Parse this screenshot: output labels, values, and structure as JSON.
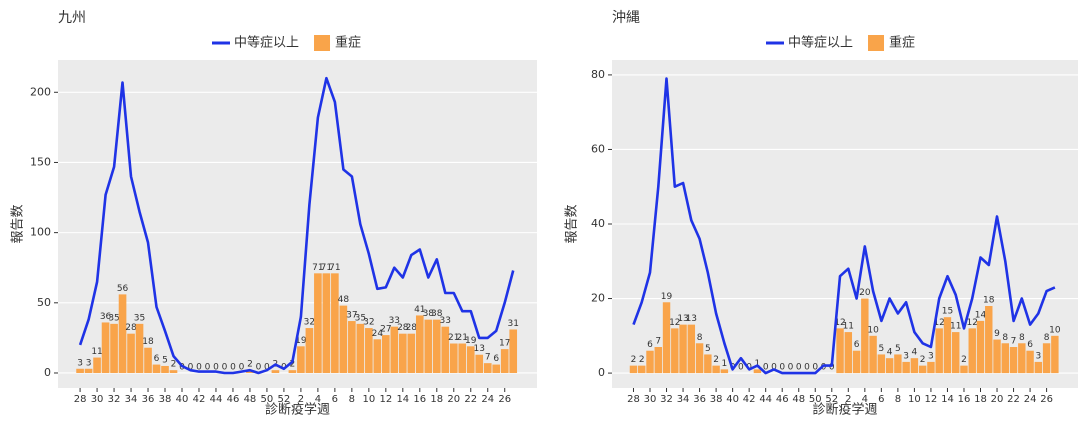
{
  "chart_data": [
    {
      "type": "combo",
      "title": "九州",
      "xlabel": "診断疫学週",
      "ylabel": "報告数",
      "categories": [
        28,
        null,
        30,
        null,
        32,
        null,
        34,
        null,
        36,
        null,
        38,
        null,
        40,
        null,
        42,
        null,
        44,
        null,
        46,
        null,
        48,
        null,
        50,
        null,
        52,
        null,
        2,
        null,
        4,
        null,
        6,
        null,
        8,
        null,
        10,
        null,
        12,
        null,
        14,
        null,
        16,
        null,
        18,
        null,
        20,
        null,
        22,
        null,
        24,
        null,
        26,
        null
      ],
      "ylim": [
        -10.7,
        223
      ],
      "yticks": [
        0,
        50,
        100,
        150,
        200
      ],
      "grid": true,
      "series": [
        {
          "name": "中等症以上",
          "type": "line",
          "color": "#1f33e6",
          "values": [
            20,
            38,
            65,
            127,
            147,
            207,
            140,
            115,
            93,
            47,
            30,
            12,
            5,
            2,
            1,
            1,
            1,
            0,
            0,
            1,
            2,
            0,
            2,
            6,
            3,
            8,
            40,
            120,
            182,
            210,
            193,
            145,
            140,
            106,
            85,
            60,
            61,
            75,
            68,
            84,
            88,
            68,
            81,
            57,
            57,
            44,
            44,
            25,
            25,
            30,
            50,
            73
          ]
        },
        {
          "name": "重症",
          "type": "bar",
          "color": "#f9a44a",
          "values": [
            3,
            3,
            11,
            36,
            35,
            56,
            28,
            35,
            18,
            6,
            5,
            2,
            0,
            0,
            0,
            0,
            0,
            0,
            0,
            0,
            2,
            0,
            0,
            2,
            0,
            2,
            19,
            32,
            71,
            71,
            71,
            48,
            37,
            35,
            32,
            24,
            27,
            33,
            28,
            28,
            41,
            38,
            38,
            33,
            21,
            21,
            19,
            13,
            7,
            6,
            17,
            31
          ]
        }
      ]
    },
    {
      "type": "combo",
      "title": "沖縄",
      "xlabel": "診断疫学週",
      "ylabel": "報告数",
      "categories": [
        28,
        null,
        30,
        null,
        32,
        null,
        34,
        null,
        36,
        null,
        38,
        null,
        40,
        null,
        42,
        null,
        44,
        null,
        46,
        null,
        48,
        null,
        50,
        null,
        52,
        null,
        2,
        null,
        4,
        null,
        6,
        null,
        8,
        null,
        10,
        null,
        12,
        null,
        14,
        null,
        16,
        null,
        18,
        null,
        20,
        null,
        22,
        null,
        24,
        null,
        26,
        null
      ],
      "ylim": [
        -4,
        84
      ],
      "yticks": [
        0,
        20,
        40,
        60,
        80
      ],
      "grid": true,
      "series": [
        {
          "name": "中等症以上",
          "type": "line",
          "color": "#1f33e6",
          "values": [
            13,
            19,
            27,
            50,
            79,
            50,
            51,
            41,
            36,
            27,
            16,
            8,
            1,
            4,
            1,
            2,
            0,
            1,
            0,
            0,
            0,
            0,
            0,
            2,
            2,
            26,
            28,
            20,
            34,
            22,
            14,
            20,
            16,
            19,
            11,
            8,
            7,
            20,
            26,
            21,
            12,
            20,
            31,
            29,
            42,
            30,
            14,
            20,
            13,
            16,
            22,
            23
          ]
        },
        {
          "name": "重症",
          "type": "bar",
          "color": "#f9a44a",
          "values": [
            2,
            2,
            6,
            7,
            19,
            12,
            13,
            13,
            8,
            5,
            2,
            1,
            0,
            0,
            0,
            1,
            0,
            0,
            0,
            0,
            0,
            0,
            0,
            0,
            0,
            12,
            11,
            6,
            20,
            10,
            5,
            4,
            5,
            3,
            4,
            2,
            3,
            12,
            15,
            11,
            2,
            12,
            14,
            18,
            9,
            8,
            7,
            8,
            6,
            3,
            8,
            10
          ]
        }
      ]
    }
  ]
}
